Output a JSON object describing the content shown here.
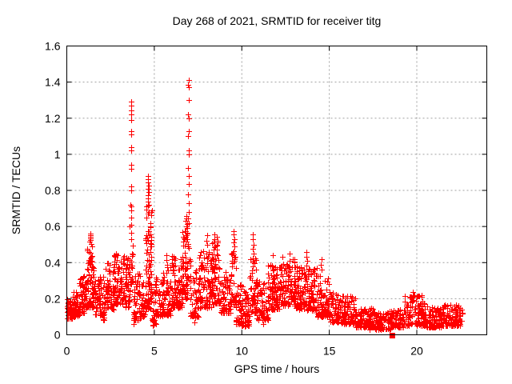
{
  "chart_data": {
    "type": "scatter",
    "title": "Day 268 of 2021, SRMTID for receiver titg",
    "xlabel": "GPS time / hours",
    "ylabel": "SRMTID / TECUs",
    "xlim": [
      0,
      24
    ],
    "ylim": [
      0,
      1.6
    ],
    "xticks": {
      "values": [
        0,
        5,
        10,
        15,
        20
      ],
      "labels": [
        "0",
        "5",
        "10",
        "15",
        "20"
      ]
    },
    "yticks": {
      "values": [
        0,
        0.2,
        0.4,
        0.6,
        0.8,
        1.0,
        1.2,
        1.4,
        1.6
      ],
      "labels": [
        "0",
        "0.2",
        "0.4",
        "0.6",
        "0.8",
        "1",
        "1.2",
        "1.4",
        "1.6"
      ]
    },
    "grid": {
      "show": true,
      "style": "dotted",
      "color": "#a0a0a0"
    },
    "legend": "none",
    "marker": {
      "shape": "plus",
      "size": 7,
      "color": "#ff0000"
    },
    "seed": 42,
    "bands_format": "[x_start, x_end, n_points, y_min, y_max, bias_exponent] - dense noisy envelope read from plot",
    "bands": [
      [
        0.0,
        0.3,
        40,
        0.09,
        0.2,
        1.5
      ],
      [
        0.3,
        0.7,
        55,
        0.1,
        0.24,
        1.6
      ],
      [
        0.7,
        1.1,
        60,
        0.12,
        0.33,
        1.7
      ],
      [
        1.1,
        1.6,
        80,
        0.15,
        0.48,
        1.7
      ],
      [
        1.6,
        2.1,
        60,
        0.11,
        0.33,
        1.7
      ],
      [
        2.0,
        2.2,
        8,
        0.07,
        0.14,
        1.2
      ],
      [
        2.1,
        2.7,
        70,
        0.14,
        0.4,
        1.7
      ],
      [
        2.7,
        3.3,
        85,
        0.17,
        0.46,
        1.6
      ],
      [
        3.3,
        3.62,
        45,
        0.15,
        0.43,
        1.5
      ],
      [
        3.62,
        3.78,
        16,
        0.28,
        0.5,
        1.2
      ],
      [
        3.78,
        4.2,
        48,
        0.08,
        0.34,
        1.7
      ],
      [
        4.2,
        4.5,
        35,
        0.1,
        0.3,
        1.7
      ],
      [
        4.5,
        4.85,
        90,
        0.14,
        0.72,
        1.5
      ],
      [
        4.85,
        5.1,
        25,
        0.05,
        0.25,
        1.5
      ],
      [
        5.05,
        5.45,
        40,
        0.1,
        0.32,
        1.7
      ],
      [
        5.45,
        5.95,
        60,
        0.11,
        0.38,
        1.8
      ],
      [
        5.95,
        6.6,
        85,
        0.15,
        0.45,
        1.8
      ],
      [
        6.6,
        6.9,
        50,
        0.2,
        0.58,
        1.4
      ],
      [
        6.88,
        7.06,
        12,
        0.3,
        0.56,
        1.2
      ],
      [
        7.05,
        7.55,
        55,
        0.1,
        0.36,
        1.7
      ],
      [
        7.55,
        8.25,
        90,
        0.15,
        0.47,
        1.8
      ],
      [
        8.25,
        8.75,
        75,
        0.17,
        0.52,
        1.6
      ],
      [
        8.75,
        9.35,
        65,
        0.12,
        0.35,
        1.7
      ],
      [
        9.35,
        9.65,
        30,
        0.17,
        0.46,
        1.4
      ],
      [
        9.65,
        10.05,
        50,
        0.06,
        0.28,
        1.6
      ],
      [
        10.05,
        10.45,
        50,
        0.05,
        0.25,
        1.6
      ],
      [
        10.45,
        10.85,
        55,
        0.12,
        0.44,
        1.6
      ],
      [
        10.85,
        11.5,
        75,
        0.08,
        0.31,
        1.7
      ],
      [
        11.5,
        12.2,
        95,
        0.14,
        0.4,
        1.7
      ],
      [
        12.2,
        13.1,
        110,
        0.16,
        0.42,
        1.6
      ],
      [
        13.1,
        13.7,
        80,
        0.14,
        0.38,
        1.7
      ],
      [
        13.7,
        14.3,
        75,
        0.13,
        0.37,
        1.7
      ],
      [
        14.3,
        15.0,
        75,
        0.1,
        0.33,
        1.7
      ],
      [
        15.0,
        15.7,
        70,
        0.07,
        0.24,
        1.7
      ],
      [
        15.7,
        16.5,
        85,
        0.06,
        0.22,
        1.6
      ],
      [
        16.5,
        17.5,
        95,
        0.04,
        0.15,
        1.5
      ],
      [
        17.5,
        18.5,
        95,
        0.03,
        0.13,
        1.5
      ],
      [
        18.5,
        19.3,
        80,
        0.04,
        0.14,
        1.5
      ],
      [
        19.3,
        20.4,
        110,
        0.05,
        0.22,
        1.6
      ],
      [
        20.4,
        21.4,
        100,
        0.04,
        0.16,
        1.6
      ],
      [
        21.4,
        22.6,
        115,
        0.05,
        0.17,
        1.6
      ]
    ],
    "points_format": "[x_hours, y_tecus] - individually visible spike/outlier points",
    "points": [
      [
        3.66,
        1.29
      ],
      [
        3.68,
        1.27
      ],
      [
        3.67,
        1.245
      ],
      [
        3.69,
        1.22
      ],
      [
        3.66,
        1.19
      ],
      [
        3.68,
        1.13
      ],
      [
        3.67,
        1.11
      ],
      [
        3.66,
        1.04
      ],
      [
        3.69,
        1.02
      ],
      [
        3.67,
        0.94
      ],
      [
        3.68,
        0.92
      ],
      [
        3.66,
        0.82
      ],
      [
        3.67,
        0.8
      ],
      [
        3.69,
        0.71
      ],
      [
        3.66,
        0.69
      ],
      [
        3.68,
        0.65
      ],
      [
        3.67,
        0.61
      ],
      [
        3.66,
        0.565
      ],
      [
        3.68,
        0.53
      ],
      [
        3.62,
        0.72
      ],
      [
        3.61,
        0.6
      ],
      [
        4.62,
        0.88
      ],
      [
        4.66,
        0.86
      ],
      [
        4.64,
        0.845
      ],
      [
        4.68,
        0.825
      ],
      [
        4.63,
        0.81
      ],
      [
        4.67,
        0.79
      ],
      [
        4.65,
        0.775
      ],
      [
        4.62,
        0.755
      ],
      [
        4.66,
        0.74
      ],
      [
        6.95,
        1.41
      ],
      [
        6.94,
        1.385
      ],
      [
        6.96,
        1.37
      ],
      [
        6.95,
        1.3
      ],
      [
        6.94,
        1.22
      ],
      [
        6.96,
        1.2
      ],
      [
        6.95,
        1.13
      ],
      [
        6.94,
        1.1
      ],
      [
        6.96,
        1.02
      ],
      [
        6.95,
        1.0
      ],
      [
        6.94,
        0.925
      ],
      [
        6.96,
        0.88
      ],
      [
        6.95,
        0.835
      ],
      [
        6.94,
        0.78
      ],
      [
        6.96,
        0.73
      ],
      [
        6.95,
        0.68
      ],
      [
        6.93,
        0.645
      ],
      [
        6.97,
        0.62
      ],
      [
        6.82,
        0.66
      ],
      [
        6.85,
        0.645
      ],
      [
        6.8,
        0.63
      ],
      [
        6.88,
        0.615
      ],
      [
        6.83,
        0.6
      ],
      [
        6.86,
        0.59
      ],
      [
        6.81,
        0.575
      ],
      [
        6.87,
        0.56
      ],
      [
        6.84,
        0.55
      ],
      [
        1.33,
        0.56
      ],
      [
        1.36,
        0.55
      ],
      [
        1.34,
        0.545
      ],
      [
        1.37,
        0.535
      ],
      [
        1.35,
        0.525
      ],
      [
        1.32,
        0.515
      ],
      [
        1.38,
        0.505
      ],
      [
        1.45,
        0.49
      ],
      [
        5.7,
        0.44
      ],
      [
        5.68,
        0.415
      ],
      [
        5.72,
        0.39
      ],
      [
        8.0,
        0.55
      ],
      [
        7.98,
        0.52
      ],
      [
        8.02,
        0.5
      ],
      [
        8.42,
        0.555
      ],
      [
        8.44,
        0.53
      ],
      [
        8.4,
        0.51
      ],
      [
        8.58,
        0.545
      ],
      [
        8.6,
        0.52
      ],
      [
        8.56,
        0.5
      ],
      [
        8.43,
        0.485
      ],
      [
        8.59,
        0.47
      ],
      [
        9.55,
        0.575
      ],
      [
        9.53,
        0.555
      ],
      [
        9.57,
        0.53
      ],
      [
        9.54,
        0.51
      ],
      [
        9.56,
        0.49
      ],
      [
        9.55,
        0.465
      ],
      [
        9.53,
        0.445
      ],
      [
        9.57,
        0.42
      ],
      [
        9.54,
        0.4
      ],
      [
        10.65,
        0.555
      ],
      [
        10.63,
        0.53
      ],
      [
        10.67,
        0.5
      ],
      [
        10.64,
        0.475
      ],
      [
        10.66,
        0.45
      ],
      [
        10.65,
        0.425
      ],
      [
        11.75,
        0.44
      ],
      [
        12.3,
        0.43
      ],
      [
        12.75,
        0.45
      ],
      [
        12.9,
        0.42
      ],
      [
        13.7,
        0.46
      ],
      [
        13.68,
        0.43
      ],
      [
        13.72,
        0.41
      ],
      [
        13.69,
        0.385
      ],
      [
        14.55,
        0.42
      ],
      [
        14.53,
        0.39
      ],
      [
        14.57,
        0.36
      ],
      [
        16.2,
        0.215
      ],
      [
        16.25,
        0.2
      ],
      [
        19.75,
        0.235
      ],
      [
        19.85,
        0.22
      ],
      [
        19.6,
        0.21
      ],
      [
        2.1,
        0.085
      ],
      [
        3.8,
        0.06
      ],
      [
        3.82,
        0.09
      ],
      [
        4.9,
        0.05
      ],
      [
        4.92,
        0.075
      ],
      [
        7.3,
        0.07
      ],
      [
        7.33,
        0.095
      ],
      [
        9.9,
        0.065
      ],
      [
        10.0,
        0.05
      ],
      [
        10.15,
        0.045
      ],
      [
        10.2,
        0.05
      ],
      [
        11.2,
        0.06
      ],
      [
        17.3,
        0.03
      ],
      [
        17.8,
        0.03
      ],
      [
        18.1,
        0.035
      ]
    ],
    "outliers": [
      {
        "x": 18.6,
        "y": 0.0,
        "shape": "filled-square"
      }
    ]
  }
}
